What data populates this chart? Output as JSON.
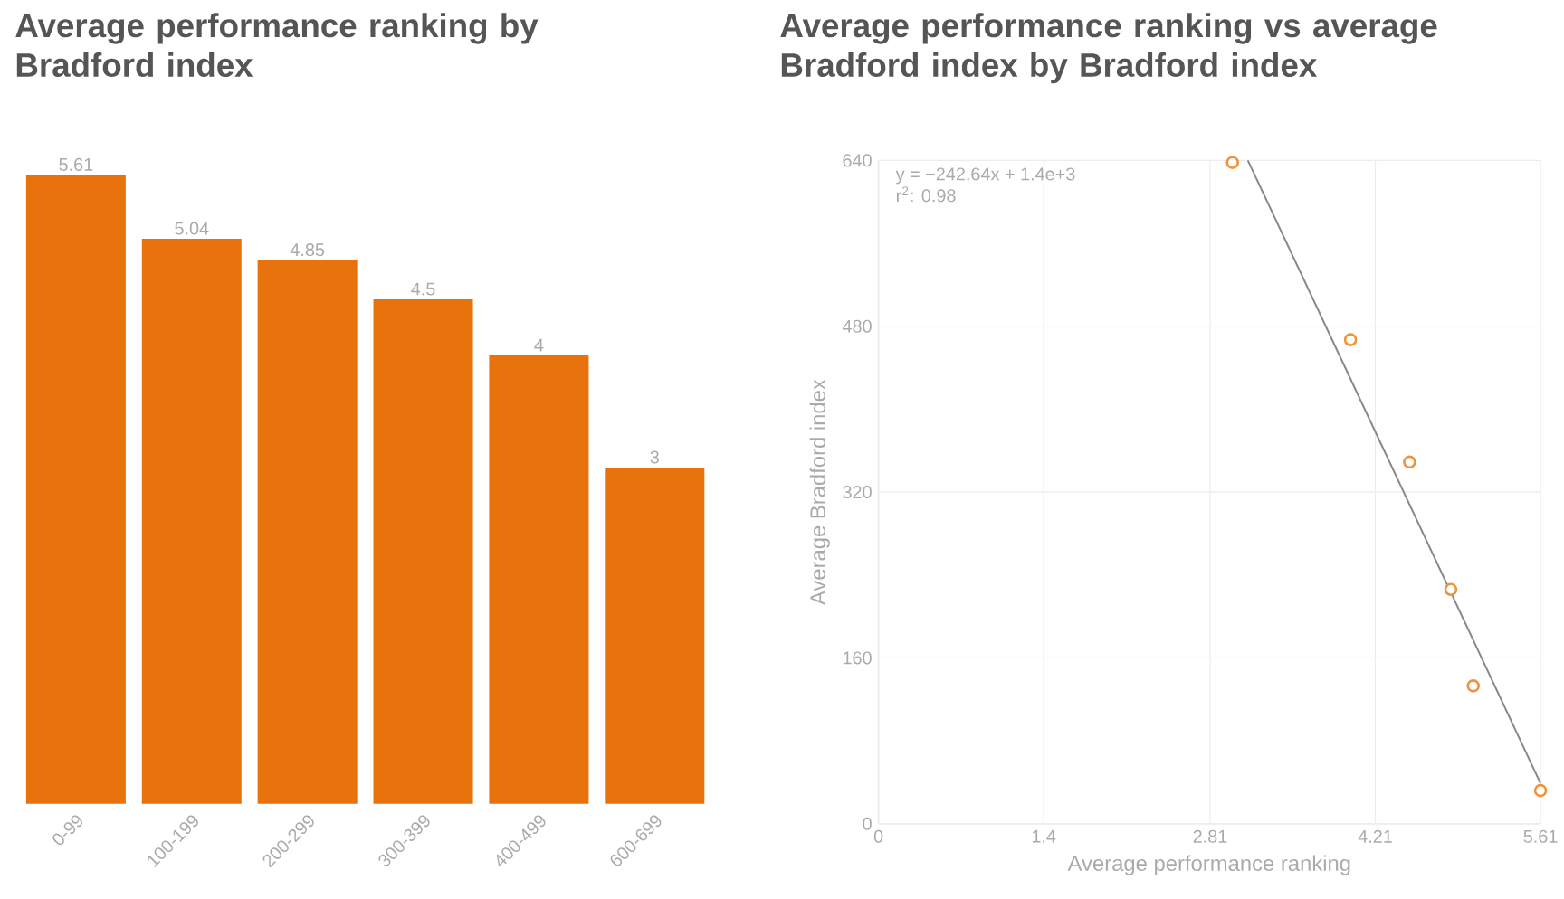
{
  "chart_data": [
    {
      "type": "bar",
      "title": "Average performance ranking by Bradford index",
      "categories": [
        "0-99",
        "100-199",
        "200-299",
        "300-399",
        "400-499",
        "600-699"
      ],
      "values": [
        5.61,
        5.04,
        4.85,
        4.5,
        4,
        3
      ],
      "color": "#e8720c",
      "data_labels": true,
      "ylim": [
        0,
        5.61
      ],
      "tick_labels": "x",
      "grid": false
    },
    {
      "type": "scatter",
      "title": "Average performance ranking vs average Bradford index by Bradford index",
      "xlabel": "Average performance ranking",
      "ylabel": "Average Bradford index",
      "xlim": [
        0,
        5.61
      ],
      "xticks": [
        0,
        1.4,
        2.81,
        4.21,
        5.61
      ],
      "ylim": [
        0,
        640
      ],
      "yticks": [
        0,
        160,
        320,
        480,
        640
      ],
      "grid": true,
      "annotations": [
        "y = −242.64x + 1.4e+3",
        "r$^{2}$: 0.98"
      ],
      "series": [
        {
          "type": "scatter",
          "marker": "circle",
          "color": "#f0923a",
          "x": [
            3,
            4,
            4.5,
            4.85,
            5.04,
            5.61
          ],
          "values": [
            638,
            467,
            349,
            226,
            133,
            32
          ]
        },
        {
          "type": "line",
          "marker": "none",
          "color": "#888888",
          "x": [
            3.13,
            5.61
          ],
          "values": [
            640,
            39
          ]
        }
      ]
    }
  ]
}
